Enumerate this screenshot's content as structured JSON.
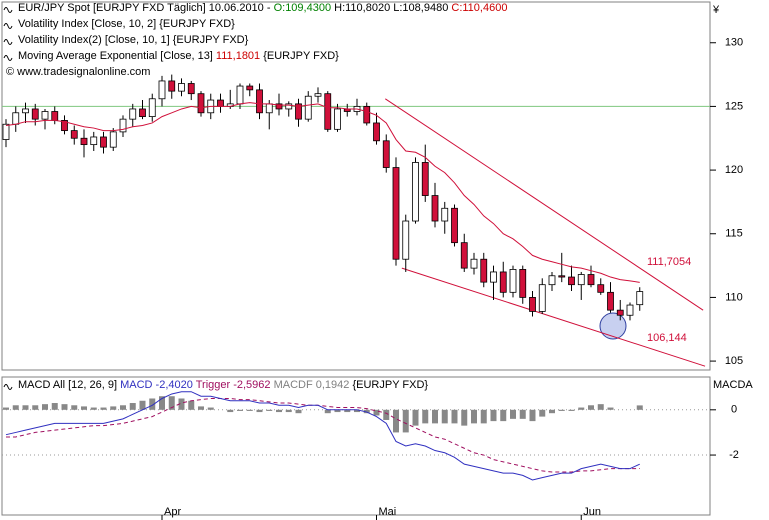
{
  "chart_data": [
    {
      "type": "candlestick",
      "header": [
        [
          {
            "text": "EUR/JPY Spot [EURJPY FXD  Täglich] 10.06.2010 - ",
            "color": "#000000"
          },
          {
            "text": "O:109,4300",
            "color": "#008000"
          },
          {
            "text": " H:110,8020 L:108,9480 ",
            "color": "#000000"
          },
          {
            "text": "C:110,4600",
            "color": "#cc0000"
          }
        ],
        [
          {
            "text": "Volatility Index [Close, 10, 2] ",
            "color": "#000000"
          },
          {
            "text": "{EURJPY FXD}",
            "color": "#000000"
          }
        ],
        [
          {
            "text": "Volatility Index(2) [Close, 10, 1] ",
            "color": "#000000"
          },
          {
            "text": "{EURJPY FXD}",
            "color": "#000000"
          }
        ],
        [
          {
            "text": "Moving Average Exponential [Close, 13] ",
            "color": "#000000"
          },
          {
            "text": "111,1801",
            "color": "#cc0000"
          },
          {
            "text": " {EURJPY FXD}",
            "color": "#000000"
          }
        ],
        [
          {
            "text": "© www.tradesignalonline.com",
            "color": "#000000"
          }
        ]
      ],
      "y_unit": "¥",
      "categories": [
        null,
        null,
        null,
        null,
        null,
        null,
        null,
        null,
        null,
        null,
        null,
        null,
        null,
        null,
        null,
        null,
        "Apr",
        null,
        null,
        null,
        null,
        null,
        null,
        null,
        null,
        null,
        null,
        null,
        null,
        null,
        null,
        null,
        null,
        null,
        null,
        null,
        null,
        null,
        "Mai",
        null,
        null,
        null,
        null,
        null,
        null,
        null,
        null,
        null,
        null,
        null,
        null,
        null,
        null,
        null,
        null,
        null,
        null,
        null,
        null,
        "Jun",
        null,
        null,
        null,
        null,
        null,
        null
      ],
      "open": [
        122.4,
        123.6,
        124.5,
        124.8,
        124.0,
        124.6,
        123.9,
        123.1,
        122.5,
        122.0,
        122.6,
        121.8,
        123.0,
        124.0,
        124.8,
        124.2,
        125.6,
        127.0,
        126.2,
        126.8,
        126.0,
        124.5,
        125.5,
        125.0,
        125.2,
        126.6,
        126.3,
        124.5,
        125.2,
        124.8,
        125.2,
        124.0,
        125.8,
        126.0,
        123.2,
        124.8,
        124.6,
        125.0,
        123.7,
        122.3,
        120.2,
        113.0,
        116.0,
        120.6,
        118.0,
        116.0,
        117.0,
        114.3,
        112.3,
        113.0,
        111.2,
        112.0,
        110.4,
        112.2,
        110.0,
        108.9,
        111.0,
        111.7,
        111.6,
        111.0,
        111.8,
        111.0,
        110.4,
        109.0,
        108.6,
        109.43
      ],
      "high": [
        124.0,
        125.0,
        125.3,
        125.2,
        124.8,
        125.0,
        124.3,
        123.5,
        123.2,
        123.0,
        123.0,
        123.3,
        124.3,
        125.2,
        125.5,
        126.0,
        127.4,
        127.5,
        127.2,
        127.0,
        126.2,
        126.0,
        126.0,
        126.3,
        126.8,
        126.8,
        126.8,
        125.5,
        126.0,
        125.4,
        125.6,
        126.2,
        126.5,
        126.2,
        125.2,
        125.2,
        125.6,
        125.3,
        124.5,
        122.8,
        121.0,
        116.5,
        121.0,
        122.0,
        119.0,
        117.5,
        117.3,
        115.0,
        113.5,
        113.5,
        112.5,
        112.8,
        112.5,
        112.5,
        110.5,
        111.5,
        112.0,
        113.5,
        112.5,
        112.0,
        112.5,
        111.5,
        111.2,
        109.8,
        109.6,
        110.8
      ],
      "low": [
        121.8,
        123.0,
        123.7,
        123.5,
        123.2,
        123.6,
        122.8,
        122.0,
        121.0,
        121.5,
        121.3,
        121.5,
        122.6,
        123.4,
        124.0,
        123.8,
        125.0,
        125.6,
        125.8,
        125.5,
        124.2,
        124.0,
        124.5,
        124.8,
        124.8,
        125.8,
        124.0,
        123.2,
        124.3,
        124.2,
        123.4,
        123.8,
        125.3,
        123.0,
        123.0,
        124.2,
        124.3,
        123.5,
        122.0,
        119.8,
        112.5,
        112.0,
        115.8,
        117.5,
        115.5,
        115.0,
        114.0,
        112.0,
        111.8,
        110.8,
        109.8,
        110.0,
        110.0,
        109.5,
        108.5,
        108.7,
        110.5,
        111.2,
        110.5,
        109.8,
        110.8,
        110.2,
        108.8,
        108.2,
        108.2,
        108.95
      ],
      "close": [
        123.6,
        124.5,
        124.8,
        124.0,
        124.6,
        123.9,
        123.1,
        122.5,
        122.0,
        122.6,
        121.8,
        123.0,
        124.0,
        124.8,
        124.2,
        125.6,
        127.0,
        126.2,
        126.8,
        126.0,
        124.5,
        125.5,
        125.0,
        125.2,
        126.6,
        126.3,
        124.5,
        125.2,
        124.8,
        125.2,
        124.0,
        125.8,
        126.0,
        123.2,
        124.8,
        124.6,
        125.0,
        123.7,
        122.3,
        120.2,
        113.0,
        116.0,
        120.6,
        118.0,
        116.0,
        117.0,
        114.3,
        112.3,
        113.0,
        111.2,
        112.0,
        110.4,
        112.2,
        110.0,
        108.9,
        111.0,
        111.7,
        111.6,
        111.0,
        111.8,
        111.0,
        110.4,
        109.0,
        108.6,
        109.4,
        110.46
      ],
      "up_color": "#ffffff",
      "down_color": "#d0103a",
      "ema": {
        "color": "#d0103a",
        "values": [
          123.5,
          123.6,
          123.8,
          123.8,
          123.9,
          123.9,
          123.8,
          123.6,
          123.4,
          123.3,
          123.1,
          123.1,
          123.2,
          123.4,
          123.5,
          123.7,
          124.2,
          124.5,
          124.8,
          125.0,
          124.9,
          125.0,
          125.0,
          125.0,
          125.2,
          125.3,
          125.2,
          125.2,
          125.1,
          125.1,
          125.0,
          125.1,
          125.2,
          124.9,
          124.9,
          124.8,
          124.8,
          124.6,
          124.3,
          123.7,
          122.4,
          121.5,
          121.4,
          121.0,
          120.3,
          119.8,
          119.0,
          118.0,
          117.3,
          116.4,
          115.8,
          115.0,
          114.6,
          114.0,
          113.3,
          113.0,
          112.8,
          112.6,
          112.4,
          112.3,
          112.1,
          111.9,
          111.6,
          111.4,
          111.3,
          111.1801
        ]
      },
      "level_line": {
        "value": 125,
        "color": "#7fc77f"
      },
      "trendlines": [
        {
          "color": "#d0103a",
          "points": [
            {
              "x": 38.9,
              "y": 125.6
            },
            {
              "x": 71.5,
              "y": 109.0
            }
          ]
        },
        {
          "color": "#d0103a",
          "points": [
            {
              "x": 40.6,
              "y": 112.3
            },
            {
              "x": 71.7,
              "y": 104.6
            }
          ]
        }
      ],
      "annotations": [
        {
          "text": "111,7054",
          "color": "#d0103a"
        },
        {
          "text": "106,144",
          "color": "#d0103a"
        }
      ],
      "ylim": [
        104.3,
        133.2
      ],
      "yticks": [
        105,
        110,
        115,
        120,
        125,
        130
      ]
    },
    {
      "type": "macd",
      "header": [
        [
          {
            "text": "MACD All [12, 26, 9] ",
            "color": "#000000"
          },
          {
            "text": "MACD -2,4020",
            "color": "#3030c0"
          },
          {
            "text": " Trigger -2,5962",
            "color": "#a01060"
          },
          {
            "text": " MACDF 0,1942",
            "color": "#808080"
          },
          {
            "text": " {EURJPY FXD}",
            "color": "#000000"
          }
        ]
      ],
      "y_unit": "MACDA",
      "macd": {
        "color": "#3030c0",
        "values": [
          -1.1,
          -1.0,
          -0.9,
          -0.8,
          -0.7,
          -0.6,
          -0.6,
          -0.6,
          -0.6,
          -0.6,
          -0.6,
          -0.5,
          -0.4,
          -0.2,
          0.0,
          0.2,
          0.5,
          0.7,
          0.8,
          0.8,
          0.6,
          0.6,
          0.5,
          0.4,
          0.4,
          0.4,
          0.3,
          0.3,
          0.2,
          0.2,
          0.1,
          0.2,
          0.2,
          0.0,
          0.0,
          0.0,
          0.0,
          -0.1,
          -0.3,
          -0.6,
          -1.4,
          -1.6,
          -1.5,
          -1.6,
          -1.8,
          -1.9,
          -2.1,
          -2.4,
          -2.5,
          -2.6,
          -2.7,
          -2.8,
          -2.8,
          -2.9,
          -3.1,
          -3.0,
          -2.9,
          -2.8,
          -2.8,
          -2.6,
          -2.5,
          -2.4,
          -2.5,
          -2.6,
          -2.6,
          -2.402
        ]
      },
      "trigger": {
        "color": "#a01060",
        "values": [
          -1.2,
          -1.2,
          -1.1,
          -1.0,
          -0.95,
          -0.9,
          -0.85,
          -0.8,
          -0.75,
          -0.7,
          -0.7,
          -0.65,
          -0.6,
          -0.5,
          -0.4,
          -0.3,
          -0.1,
          0.1,
          0.3,
          0.4,
          0.45,
          0.5,
          0.5,
          0.5,
          0.45,
          0.45,
          0.4,
          0.35,
          0.3,
          0.3,
          0.25,
          0.2,
          0.2,
          0.15,
          0.1,
          0.1,
          0.1,
          0.05,
          -0.05,
          -0.15,
          -0.4,
          -0.6,
          -0.8,
          -1.0,
          -1.2,
          -1.3,
          -1.5,
          -1.7,
          -1.9,
          -2.0,
          -2.2,
          -2.3,
          -2.4,
          -2.5,
          -2.6,
          -2.7,
          -2.75,
          -2.75,
          -2.75,
          -2.7,
          -2.7,
          -2.65,
          -2.6,
          -2.6,
          -2.6,
          -2.5962
        ]
      },
      "histogram": {
        "color": "#888888",
        "values": [
          0.1,
          0.2,
          0.2,
          0.2,
          0.25,
          0.3,
          0.25,
          0.2,
          0.15,
          0.1,
          0.1,
          0.15,
          0.2,
          0.3,
          0.4,
          0.5,
          0.6,
          0.6,
          0.5,
          0.4,
          0.15,
          0.1,
          0,
          -0.1,
          -0.05,
          -0.05,
          -0.1,
          -0.05,
          -0.1,
          -0.1,
          -0.15,
          0,
          0,
          -0.15,
          -0.1,
          -0.1,
          -0.1,
          -0.15,
          -0.25,
          -0.45,
          -1.0,
          -1.0,
          -0.7,
          -0.6,
          -0.6,
          -0.6,
          -0.6,
          -0.7,
          -0.6,
          -0.6,
          -0.5,
          -0.5,
          -0.4,
          -0.4,
          -0.5,
          -0.3,
          -0.15,
          -0.05,
          -0.05,
          0.1,
          0.2,
          0.25,
          0.1,
          0,
          0,
          0.1942
        ]
      },
      "ylim": [
        -4.65,
        1.45
      ],
      "yticks": [
        0,
        -2
      ],
      "grid": true
    }
  ]
}
